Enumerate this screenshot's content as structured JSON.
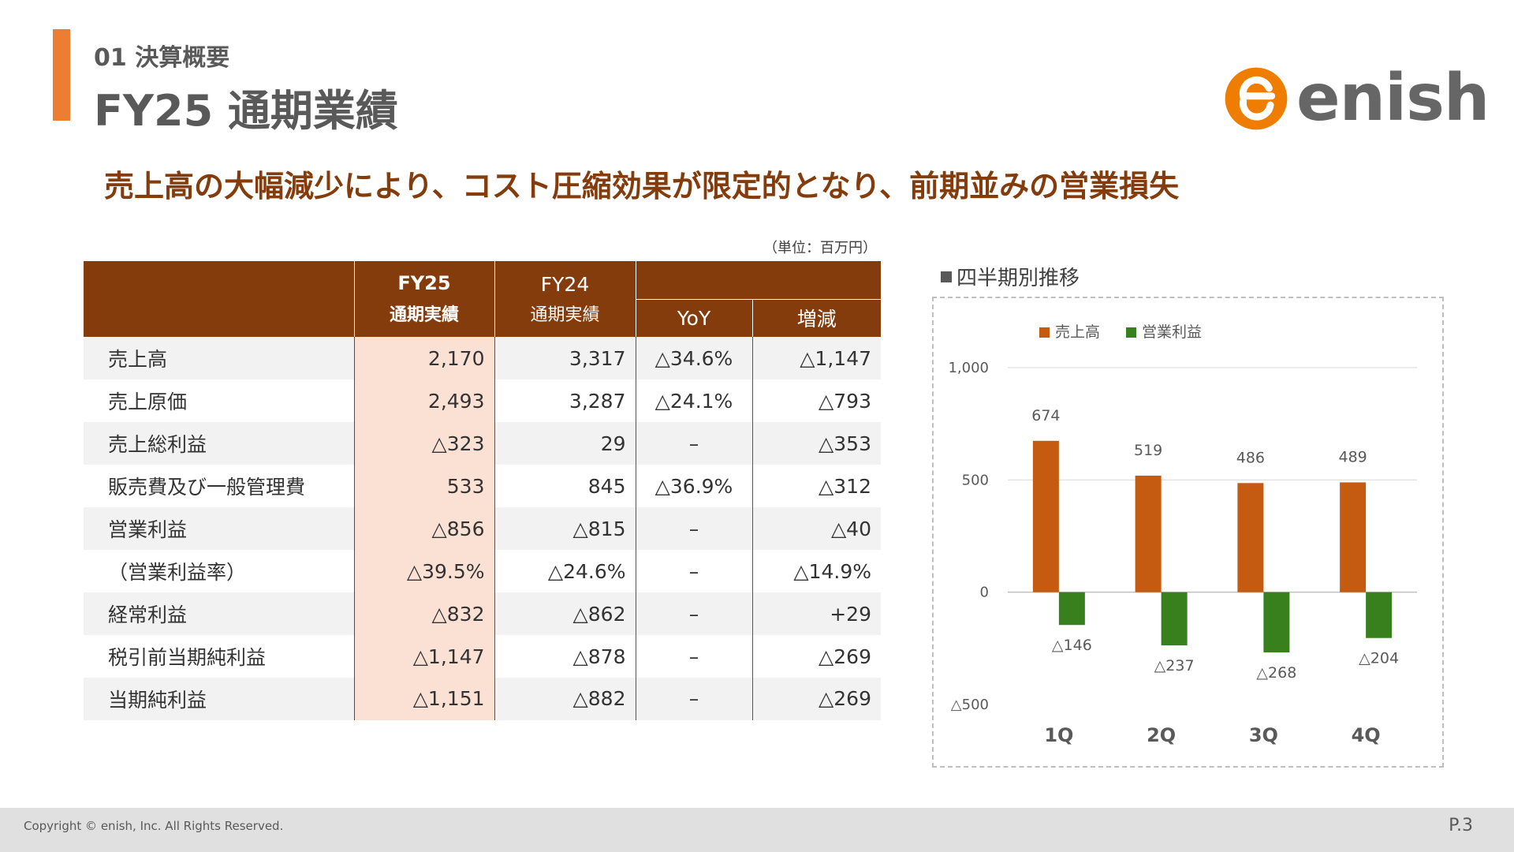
{
  "header": {
    "section_label": "01 決算概要",
    "title": "FY25 通期業績"
  },
  "logo": {
    "text": "enish",
    "color": "#EE7D00"
  },
  "headline": "売上高の大幅減少により、コスト圧縮効果が限定的となり、前期並みの営業損失",
  "unit_note": "（単位：百万円）",
  "table": {
    "headers": {
      "fy25_line1": "FY25",
      "fy25_line2": "通期実績",
      "fy24_line1": "FY24",
      "fy24_line2": "通期実績",
      "yoy": "YoY",
      "change": "増減"
    },
    "rows": [
      {
        "label": "売上高",
        "fy25": "2,170",
        "fy24": "3,317",
        "yoy": "△34.6%",
        "change": "△1,147"
      },
      {
        "label": "売上原価",
        "fy25": "2,493",
        "fy24": "3,287",
        "yoy": "△24.1%",
        "change": "△793"
      },
      {
        "label": "売上総利益",
        "fy25": "△323",
        "fy24": "29",
        "yoy": "–",
        "change": "△353"
      },
      {
        "label": "販売費及び一般管理費",
        "fy25": "533",
        "fy24": "845",
        "yoy": "△36.9%",
        "change": "△312"
      },
      {
        "label": "営業利益",
        "fy25": "△856",
        "fy24": "△815",
        "yoy": "–",
        "change": "△40"
      },
      {
        "label": "（営業利益率）",
        "fy25": "△39.5%",
        "fy24": "△24.6%",
        "yoy": "–",
        "change": "△14.9%"
      },
      {
        "label": "経常利益",
        "fy25": "△832",
        "fy24": "△862",
        "yoy": "–",
        "change": "+29"
      },
      {
        "label": "税引前当期純利益",
        "fy25": "△1,147",
        "fy24": "△878",
        "yoy": "–",
        "change": "△269"
      },
      {
        "label": "当期純利益",
        "fy25": "△1,151",
        "fy24": "△882",
        "yoy": "–",
        "change": "△269"
      }
    ]
  },
  "chart_heading": "四半期別推移",
  "chart_data": {
    "type": "bar",
    "categories": [
      "1Q",
      "2Q",
      "3Q",
      "4Q"
    ],
    "series": [
      {
        "name": "売上高",
        "values": [
          674,
          519,
          486,
          489
        ],
        "labels": [
          "674",
          "519",
          "486",
          "489"
        ],
        "color": "#C55A11"
      },
      {
        "name": "営業利益",
        "values": [
          -146,
          -237,
          -268,
          -204
        ],
        "labels": [
          "△146",
          "△237",
          "△268",
          "△204"
        ],
        "color": "#38801E"
      }
    ],
    "ylim": [
      -500,
      1000
    ],
    "yticks": [
      1000,
      500,
      0,
      -500
    ],
    "ytick_labels": [
      "1,000",
      "500",
      "0",
      "△500"
    ],
    "grid": true,
    "legend": "top-left"
  },
  "footer": {
    "copyright": "Copyright © enish, Inc. All Rights Reserved.",
    "page": "P.3"
  }
}
